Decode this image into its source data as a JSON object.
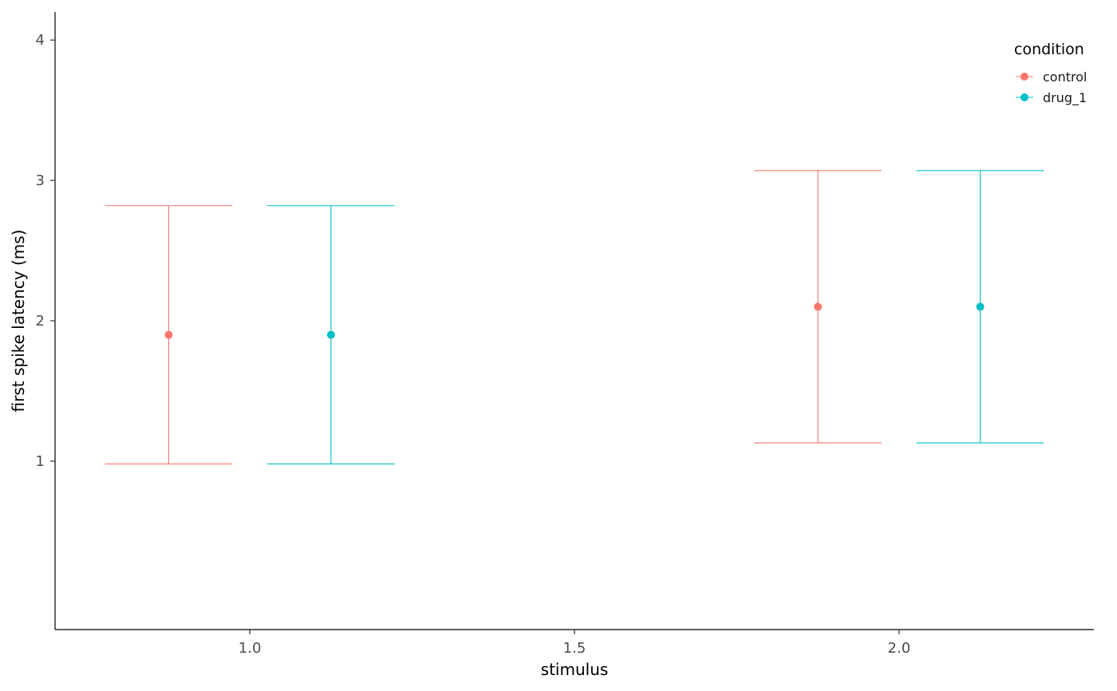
{
  "chart_data": {
    "type": "errorbar",
    "xlabel": "stimulus",
    "ylabel": "first spike latency (ms)",
    "xlim": [
      0.7,
      2.3
    ],
    "ylim": [
      -0.2,
      4.2
    ],
    "x_ticks": [
      "1.0",
      "1.5",
      "2.0"
    ],
    "x_tick_values": [
      1.0,
      1.5,
      2.0
    ],
    "y_ticks": [
      "1",
      "2",
      "3",
      "4"
    ],
    "y_tick_values": [
      1,
      2,
      3,
      4
    ],
    "grid": false,
    "legend": {
      "title": "condition",
      "position": "top-right"
    },
    "series": [
      {
        "name": "control",
        "color": "#F8766D",
        "points": [
          {
            "x": 0.875,
            "y": 1.9,
            "ymin": 0.98,
            "ymax": 2.82
          },
          {
            "x": 1.875,
            "y": 2.1,
            "ymin": 1.13,
            "ymax": 3.07
          }
        ]
      },
      {
        "name": "drug_1",
        "color": "#00BFC4",
        "points": [
          {
            "x": 1.125,
            "y": 1.9,
            "ymin": 0.98,
            "ymax": 2.82
          },
          {
            "x": 2.125,
            "y": 2.1,
            "ymin": 1.13,
            "ymax": 3.07
          }
        ]
      }
    ]
  }
}
